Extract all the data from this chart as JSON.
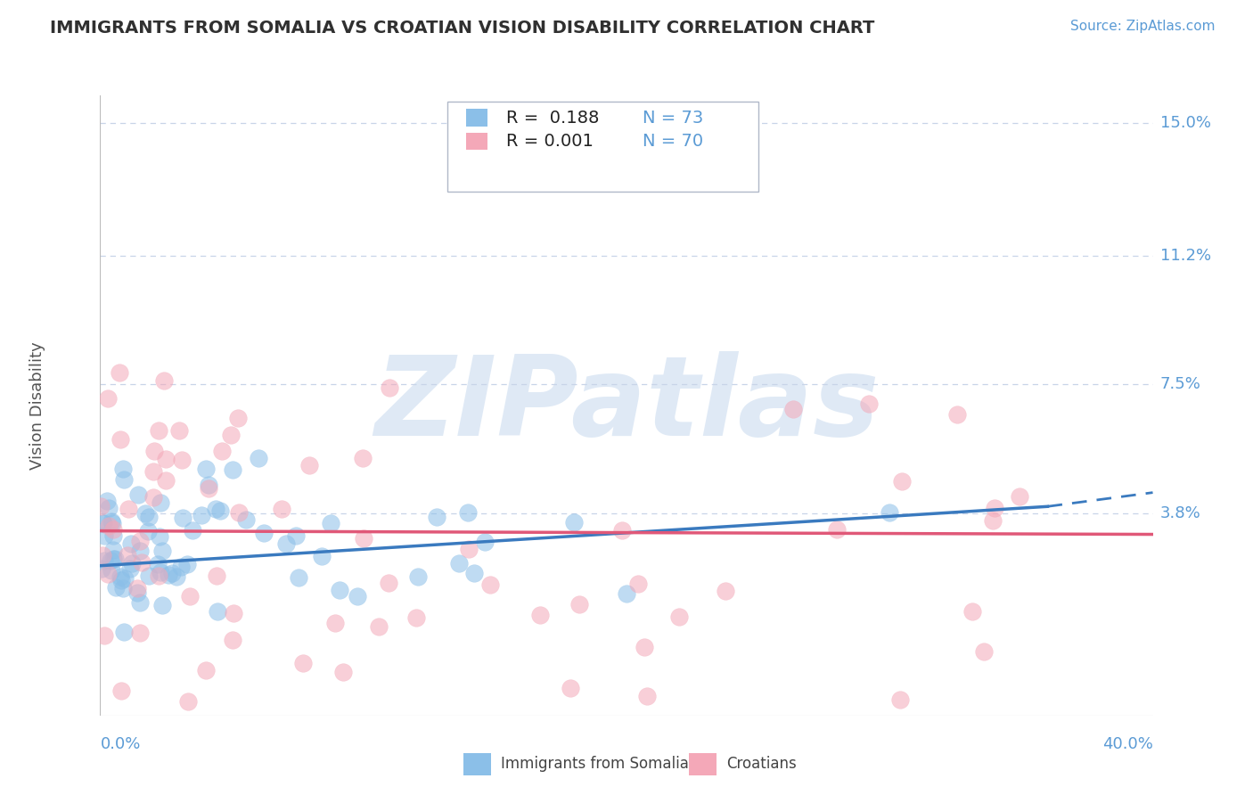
{
  "title": "IMMIGRANTS FROM SOMALIA VS CROATIAN VISION DISABILITY CORRELATION CHART",
  "source": "Source: ZipAtlas.com",
  "ylabel": "Vision Disability",
  "xlim": [
    0.0,
    0.4
  ],
  "ylim": [
    -0.02,
    0.158
  ],
  "blue_color": "#8bbfe8",
  "pink_color": "#f4a8b8",
  "blue_line_color": "#3a7abf",
  "pink_line_color": "#e05878",
  "axis_label_color": "#5b9bd5",
  "title_color": "#303030",
  "watermark_text": "ZIPatlas",
  "watermark_color": "#c5d8ee",
  "blue_R": 0.188,
  "blue_N": 73,
  "pink_R": 0.001,
  "pink_N": 70,
  "ytick_vals": [
    0.038,
    0.075,
    0.112,
    0.15
  ],
  "ytick_labels": [
    "3.8%",
    "7.5%",
    "11.2%",
    "15.0%"
  ],
  "grid_color": "#c8d4e8",
  "background_color": "#ffffff",
  "legend_label1": "Immigrants from Somalia",
  "legend_label2": "Croatians",
  "blue_trend": [
    0.0,
    0.36,
    0.023,
    0.04
  ],
  "blue_dash": [
    0.36,
    0.4,
    0.04,
    0.044
  ],
  "pink_trend": [
    0.0,
    0.4,
    0.033,
    0.032
  ],
  "scatter_marker_size": 200,
  "scatter_alpha": 0.55,
  "blue_seed": 42,
  "pink_seed": 99
}
